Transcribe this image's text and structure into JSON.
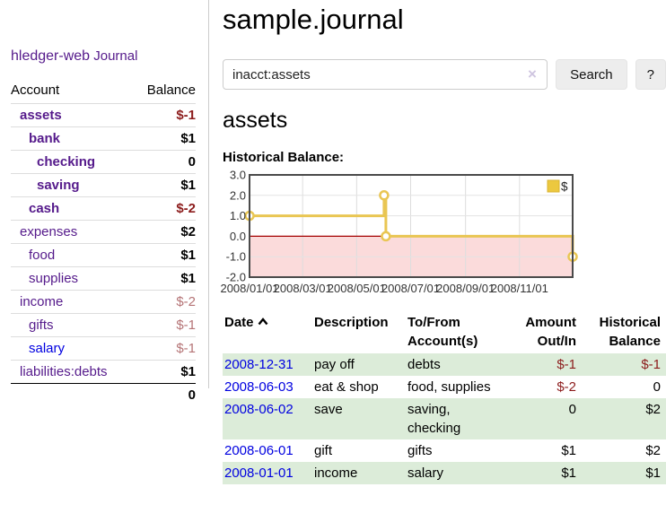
{
  "colors": {
    "purple": "#551a8b",
    "blue": "#0000e0",
    "red": "#8c1c1c",
    "redmuted": "#b57476",
    "green": "#dcecd9",
    "gold": "#e9c653",
    "goldfill": "#ecc83f",
    "pink": "#fbdbdb",
    "zerored": "#a40000",
    "chartborder": "#4a4a4a",
    "gridlight": "#dddddd"
  },
  "app": {
    "brand": "hledger-web",
    "nav_journal": "Journal"
  },
  "sidebar": {
    "header": {
      "account": "Account",
      "balance": "Balance"
    },
    "accounts": [
      {
        "name": "assets",
        "level": 1,
        "balance": "$-1",
        "bold": true
      },
      {
        "name": "bank",
        "level": 2,
        "balance": "$1",
        "bold": true
      },
      {
        "name": "checking",
        "level": 3,
        "balance": "0",
        "bold": true
      },
      {
        "name": "saving",
        "level": 3,
        "balance": "$1",
        "bold": true
      },
      {
        "name": "cash",
        "level": 2,
        "balance": "$-2",
        "bold": true
      },
      {
        "name": "expenses",
        "level": 1,
        "balance": "$2",
        "bold": false
      },
      {
        "name": "food",
        "level": 2,
        "balance": "$1",
        "bold": false
      },
      {
        "name": "supplies",
        "level": 2,
        "balance": "$1",
        "bold": false
      },
      {
        "name": "income",
        "level": 1,
        "balance": "$-2",
        "bold": false
      },
      {
        "name": "gifts",
        "level": 2,
        "balance": "$-1",
        "bold": false
      },
      {
        "name": "salary",
        "level": 2,
        "balance": "$-1",
        "bold": false,
        "unvisited": true
      },
      {
        "name": "liabilities:debts",
        "level": 1,
        "balance": "$1",
        "bold": false
      }
    ],
    "total": "0"
  },
  "header": {
    "title": "sample.journal"
  },
  "search": {
    "value": "inacct:assets",
    "clear_icon": "×",
    "button_label": "Search",
    "help_label": "?"
  },
  "main": {
    "account_title": "assets"
  },
  "chart_data": {
    "type": "line",
    "step": true,
    "title": "Historical Balance:",
    "series": [
      {
        "name": "$",
        "points": [
          [
            "2008-01-01",
            1
          ],
          [
            "2008-06-01",
            2
          ],
          [
            "2008-06-03",
            0
          ],
          [
            "2008-12-31",
            -1
          ]
        ]
      }
    ],
    "x_range": [
      "2008-01-01",
      "2008-12-31"
    ],
    "ylim": [
      -2,
      3
    ],
    "yticks": [
      3,
      2,
      1,
      0,
      -1,
      -2
    ],
    "ytick_labels": [
      "3.0",
      "2.0",
      "1.0",
      "0.0",
      "-1.0",
      "-2.0"
    ],
    "xticks": [
      {
        "label": "2008/01/01",
        "date": "2008-01-01"
      },
      {
        "label": "2008/03/01",
        "date": "2008-03-01"
      },
      {
        "label": "2008/05/01",
        "date": "2008-05-01"
      },
      {
        "label": "2008/07/01",
        "date": "2008-07-01"
      },
      {
        "label": "2008/09/01",
        "date": "2008-09-01"
      },
      {
        "label": "2008/11/01",
        "date": "2008-11-01"
      }
    ],
    "legend": {
      "label": "$",
      "position": "top-right"
    },
    "negative_region_fill": true,
    "grid": true
  },
  "register": {
    "columns": [
      {
        "label": "Date",
        "sort": "asc"
      },
      {
        "label": "Description"
      },
      {
        "label": "To/From Account(s)"
      },
      {
        "label": "Amount Out/In",
        "align": "right"
      },
      {
        "label": "Historical Balance",
        "align": "right"
      }
    ],
    "rows": [
      {
        "date": "2008-12-31",
        "description": "pay off",
        "accounts": "debts",
        "amount": "$-1",
        "balance": "$-1"
      },
      {
        "date": "2008-06-03",
        "description": "eat & shop",
        "accounts": "food, supplies",
        "amount": "$-2",
        "balance": "0"
      },
      {
        "date": "2008-06-02",
        "description": "save",
        "accounts": "saving, checking",
        "amount": "0",
        "balance": "$2"
      },
      {
        "date": "2008-06-01",
        "description": "gift",
        "accounts": "gifts",
        "amount": "$1",
        "balance": "$2"
      },
      {
        "date": "2008-01-01",
        "description": "income",
        "accounts": "salary",
        "amount": "$1",
        "balance": "$1"
      }
    ]
  }
}
